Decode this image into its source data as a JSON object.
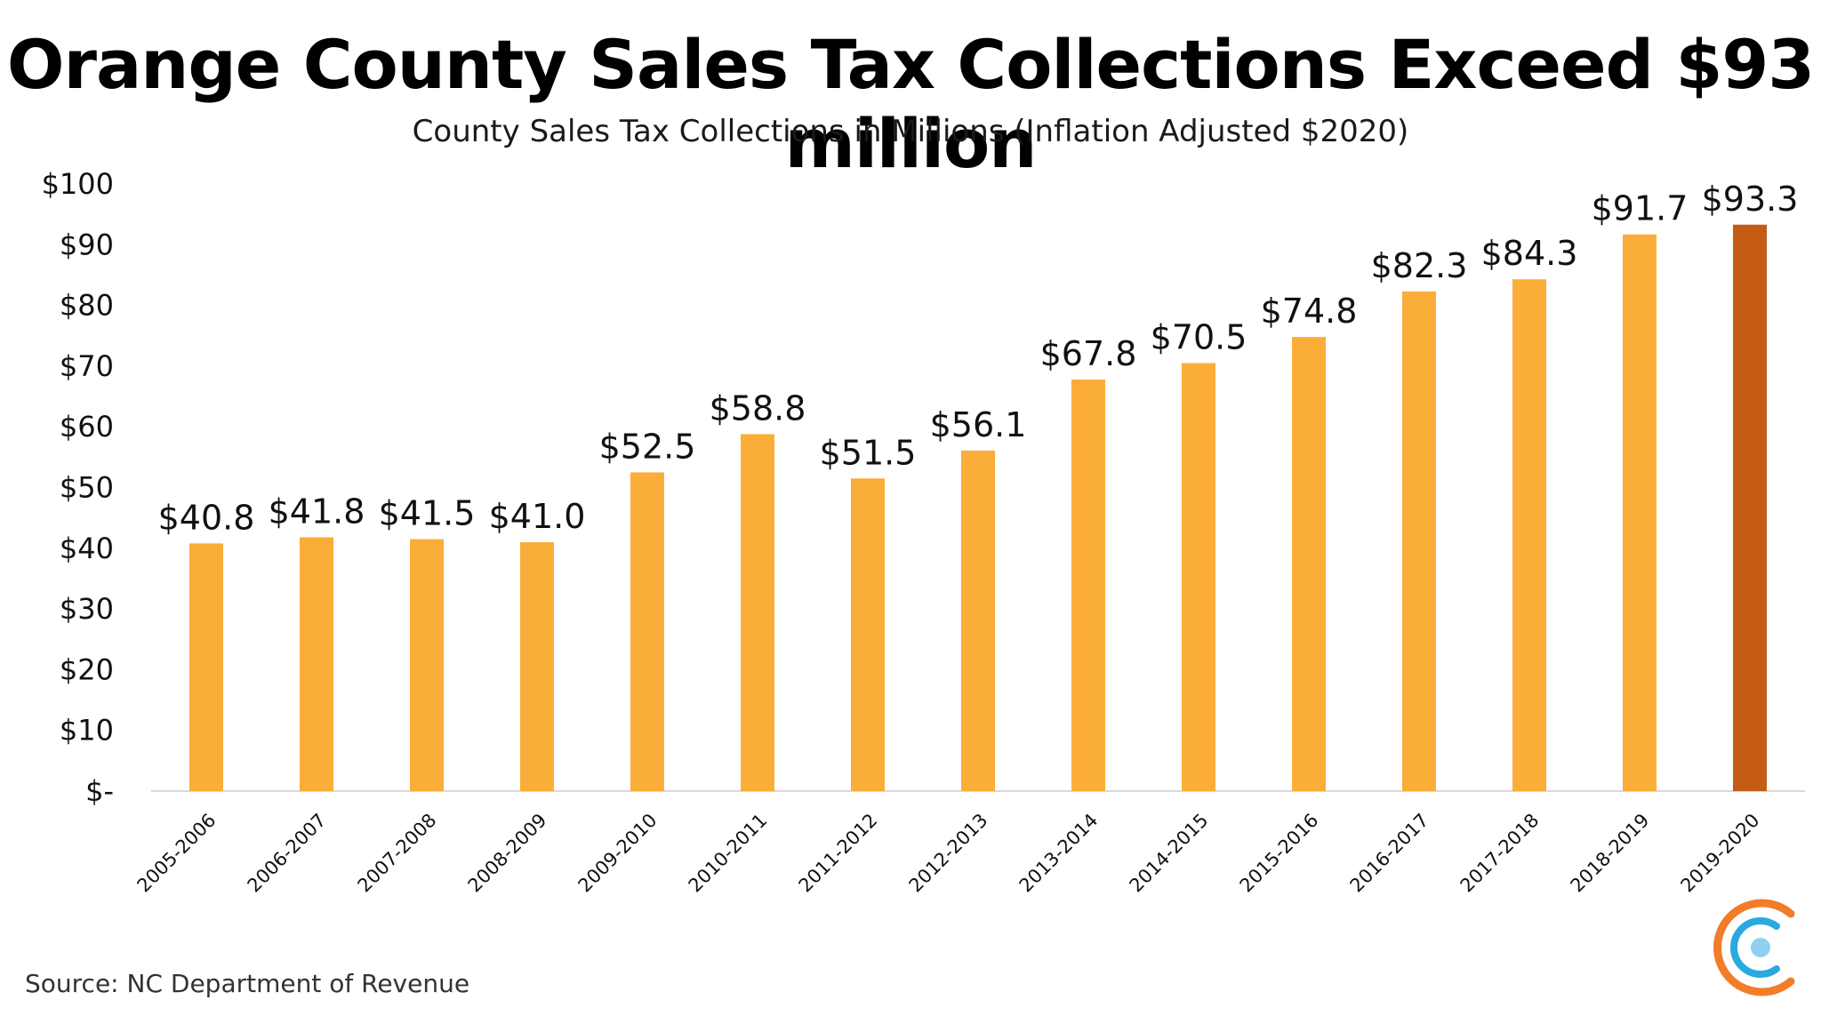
{
  "title": "Orange County Sales Tax Collections Exceed $93 million",
  "subtitle": "County Sales Tax Collections in Millions (Inflation Adjusted $2020)",
  "source": "Source: NC Department of Revenue",
  "colors": {
    "bar": "#FBAD39",
    "highlight": "#C45C16",
    "axis": "#d9d9d9"
  },
  "logo": {
    "icon": "concentric-c-logo-icon",
    "colors": [
      "#F37C2A",
      "#29A9E0",
      "#8FD0F0"
    ]
  },
  "chart_data": {
    "type": "bar",
    "title": "Orange County Sales Tax Collections Exceed $93 million",
    "subtitle": "County Sales Tax Collections in Millions (Inflation Adjusted $2020)",
    "xlabel": "",
    "ylabel": "",
    "ylim": [
      0,
      100
    ],
    "yticks": [
      0,
      10,
      20,
      30,
      40,
      50,
      60,
      70,
      80,
      90,
      100
    ],
    "ytick_labels": [
      "$-",
      "$10",
      "$20",
      "$30",
      "$40",
      "$50",
      "$60",
      "$70",
      "$80",
      "$90",
      "$100"
    ],
    "grid": false,
    "legend": "none",
    "categories": [
      "2005-2006",
      "2006-2007",
      "2007-2008",
      "2008-2009",
      "2009-2010",
      "2010-2011",
      "2011-2012",
      "2012-2013",
      "2013-2014",
      "2014-2015",
      "2015-2016",
      "2016-2017",
      "2017-2018",
      "2018-2019",
      "2019-2020"
    ],
    "values": [
      40.8,
      41.8,
      41.5,
      41.0,
      52.5,
      58.8,
      51.5,
      56.1,
      67.8,
      70.5,
      74.8,
      82.3,
      84.3,
      91.7,
      93.3
    ],
    "data_labels": [
      "$40.8",
      "$41.8",
      "$41.5",
      "$41.0",
      "$52.5",
      "$58.8",
      "$51.5",
      "$56.1",
      "$67.8",
      "$70.5",
      "$74.8",
      "$82.3",
      "$84.3",
      "$91.7",
      "$93.3"
    ],
    "highlight_category": "2019-2020"
  }
}
